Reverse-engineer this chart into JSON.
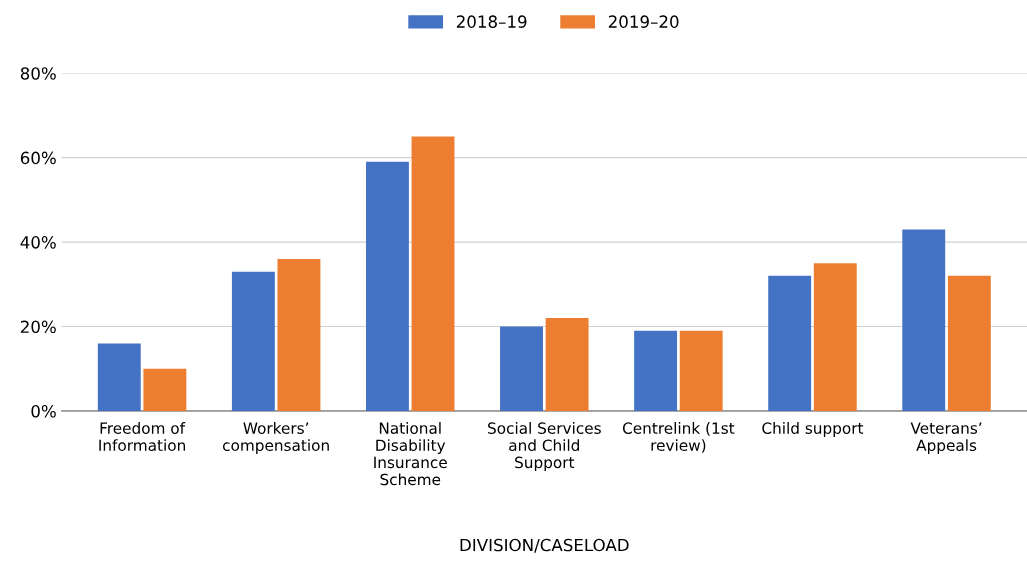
{
  "chart_data": {
    "type": "bar",
    "xlabel": "DIVISION/CASELOAD",
    "categories": [
      "Freedom of\nInformation",
      "Workers’\ncompensation",
      "National\nDisability\nInsurance\nScheme",
      "Social Services\nand Child\nSupport",
      "Centrelink (1st\nreview)",
      "Child support",
      "Veterans’\nAppeals"
    ],
    "series": [
      {
        "name": "2018–19",
        "color": "#4472c4",
        "values": [
          16,
          33,
          59,
          20,
          19,
          32,
          43
        ]
      },
      {
        "name": "2019–20",
        "color": "#ed7d31",
        "values": [
          10,
          36,
          65,
          22,
          19,
          35,
          32
        ]
      }
    ],
    "ylim": [
      0,
      80
    ],
    "yticks": [
      {
        "value": 0,
        "label": "0%"
      },
      {
        "value": 20,
        "label": "20%"
      },
      {
        "value": 40,
        "label": "40%"
      },
      {
        "value": 60,
        "label": "60%"
      },
      {
        "value": 80,
        "label": "80%"
      }
    ],
    "grid": "y",
    "legend": "top"
  }
}
